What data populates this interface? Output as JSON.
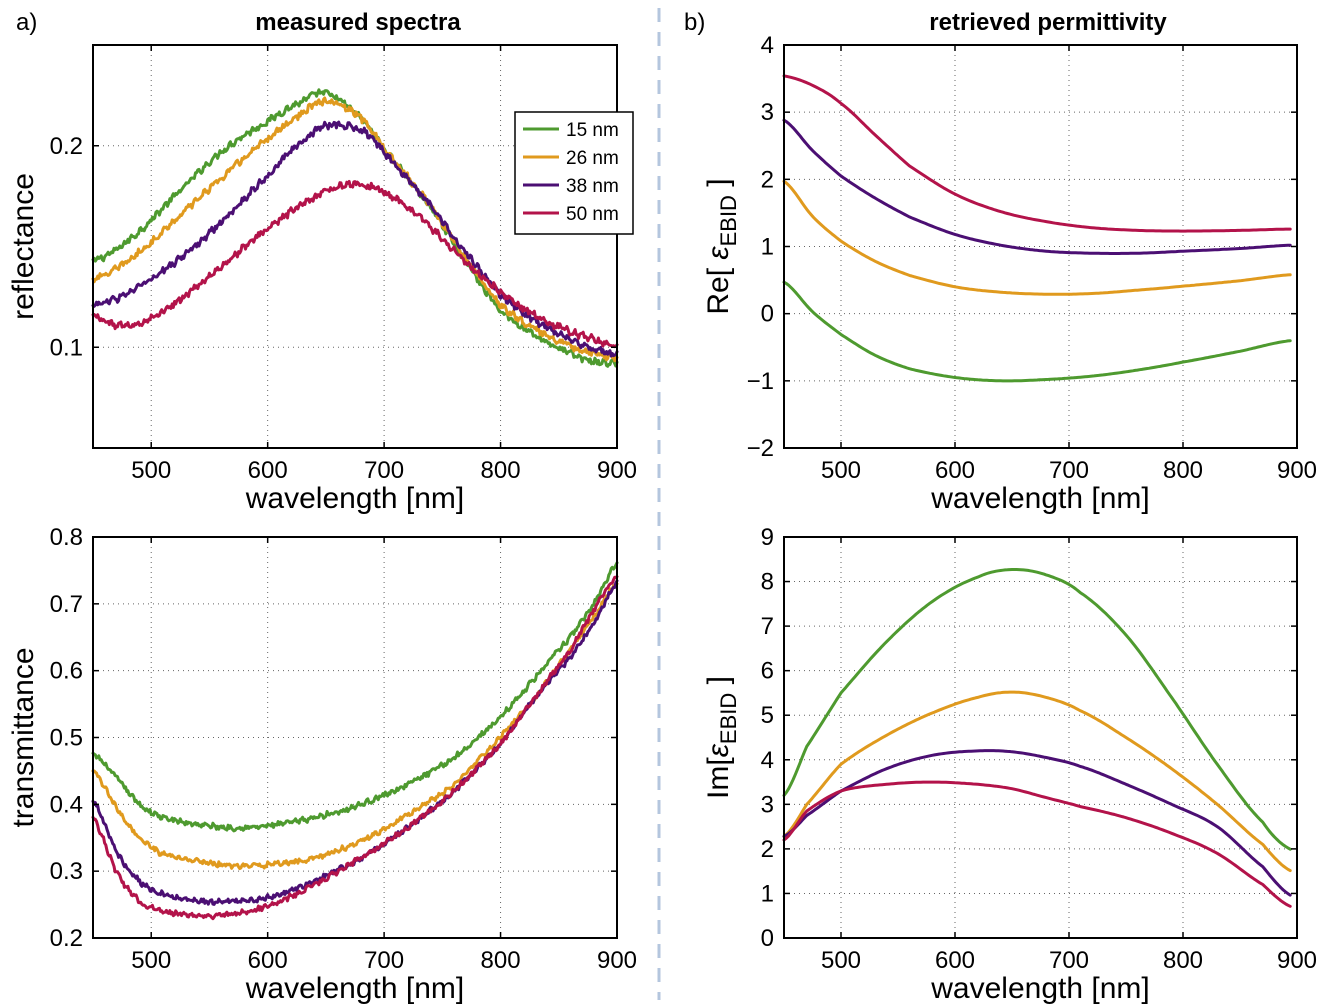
{
  "panel_labels": {
    "a": "a)",
    "b": "b)"
  },
  "titles": {
    "left": "measured spectra",
    "right": "retrieved permittivity"
  },
  "colors": {
    "15 nm": "#4e9a2f",
    "26 nm": "#e09a1e",
    "38 nm": "#4b0f73",
    "50 nm": "#b3134a",
    "divider": "#b4c6de"
  },
  "legend": {
    "placement": "top-right",
    "entries": [
      "15 nm",
      "26 nm",
      "38 nm",
      "50 nm"
    ]
  },
  "chart_data": [
    {
      "id": "reflectance",
      "type": "line",
      "title": "measured spectra",
      "xlabel": "wavelength [nm]",
      "ylabel": "reflectance",
      "xlim": [
        450,
        900
      ],
      "ylim": [
        0.05,
        0.25
      ],
      "xticks": [
        500,
        600,
        700,
        800,
        900
      ],
      "yticks": [
        0.1,
        0.2
      ],
      "ytick_labels": [
        "0.1",
        "0.2"
      ],
      "grid": true,
      "noisy": true,
      "series": [
        {
          "name": "15 nm",
          "x": [
            450,
            480,
            520,
            560,
            600,
            630,
            650,
            680,
            700,
            740,
            760,
            780,
            800,
            830,
            860,
            880,
            900
          ],
          "y": [
            0.143,
            0.153,
            0.175,
            0.197,
            0.212,
            0.222,
            0.226,
            0.214,
            0.198,
            0.17,
            0.152,
            0.134,
            0.118,
            0.106,
            0.097,
            0.093,
            0.092
          ]
        },
        {
          "name": "26 nm",
          "x": [
            450,
            480,
            520,
            560,
            600,
            630,
            650,
            680,
            700,
            740,
            760,
            780,
            800,
            830,
            860,
            880,
            900
          ],
          "y": [
            0.134,
            0.143,
            0.163,
            0.184,
            0.203,
            0.216,
            0.222,
            0.214,
            0.198,
            0.171,
            0.153,
            0.136,
            0.121,
            0.109,
            0.101,
            0.097,
            0.095
          ]
        },
        {
          "name": "38 nm",
          "x": [
            450,
            480,
            520,
            560,
            600,
            630,
            650,
            680,
            700,
            740,
            760,
            780,
            800,
            830,
            860,
            880,
            900
          ],
          "y": [
            0.121,
            0.127,
            0.142,
            0.162,
            0.185,
            0.202,
            0.21,
            0.208,
            0.196,
            0.171,
            0.155,
            0.14,
            0.126,
            0.113,
            0.104,
            0.099,
            0.096
          ]
        },
        {
          "name": "50 nm",
          "x": [
            450,
            470,
            490,
            520,
            560,
            600,
            640,
            670,
            700,
            730,
            760,
            790,
            820,
            850,
            880,
            900
          ],
          "y": [
            0.116,
            0.111,
            0.112,
            0.122,
            0.14,
            0.159,
            0.174,
            0.181,
            0.177,
            0.165,
            0.148,
            0.132,
            0.119,
            0.11,
            0.104,
            0.101
          ]
        }
      ]
    },
    {
      "id": "transmittance",
      "type": "line",
      "title": "",
      "xlabel": "wavelength [nm]",
      "ylabel": "transmittance",
      "xlim": [
        450,
        900
      ],
      "ylim": [
        0.2,
        0.8
      ],
      "xticks": [
        500,
        600,
        700,
        800,
        900
      ],
      "yticks": [
        0.2,
        0.3,
        0.4,
        0.5,
        0.6,
        0.7,
        0.8
      ],
      "ytick_labels": [
        "0.2",
        "0.3",
        "0.4",
        "0.5",
        "0.6",
        "0.7",
        "0.8"
      ],
      "grid": true,
      "noisy": true,
      "series": [
        {
          "name": "15 nm",
          "x": [
            450,
            470,
            490,
            510,
            540,
            570,
            600,
            640,
            680,
            720,
            760,
            800,
            830,
            860,
            880,
            900
          ],
          "y": [
            0.475,
            0.44,
            0.4,
            0.38,
            0.37,
            0.365,
            0.368,
            0.38,
            0.4,
            0.43,
            0.47,
            0.53,
            0.59,
            0.65,
            0.7,
            0.76
          ]
        },
        {
          "name": "26 nm",
          "x": [
            450,
            470,
            490,
            510,
            540,
            570,
            600,
            640,
            680,
            720,
            760,
            800,
            830,
            860,
            880,
            900
          ],
          "y": [
            0.45,
            0.395,
            0.35,
            0.325,
            0.315,
            0.308,
            0.31,
            0.32,
            0.345,
            0.385,
            0.43,
            0.5,
            0.56,
            0.63,
            0.68,
            0.73
          ]
        },
        {
          "name": "38 nm",
          "x": [
            450,
            470,
            490,
            510,
            540,
            570,
            600,
            640,
            680,
            720,
            760,
            800,
            830,
            860,
            880,
            900
          ],
          "y": [
            0.405,
            0.33,
            0.285,
            0.265,
            0.255,
            0.255,
            0.26,
            0.285,
            0.32,
            0.365,
            0.42,
            0.49,
            0.56,
            0.62,
            0.67,
            0.73
          ]
        },
        {
          "name": "50 nm",
          "x": [
            450,
            470,
            490,
            510,
            540,
            570,
            600,
            640,
            680,
            720,
            760,
            800,
            830,
            860,
            880,
            900
          ],
          "y": [
            0.38,
            0.3,
            0.255,
            0.24,
            0.233,
            0.236,
            0.248,
            0.28,
            0.32,
            0.365,
            0.42,
            0.49,
            0.56,
            0.63,
            0.69,
            0.74
          ]
        }
      ]
    },
    {
      "id": "re-permittivity",
      "type": "line",
      "title": "retrieved permittivity",
      "xlabel": "wavelength [nm]",
      "ylabel": "Re[ εEBID ]",
      "ylabel_parts": {
        "prefix": "Re[ ",
        "symbol": "ε",
        "subscript": "EBID",
        "suffix": " ]"
      },
      "xlim": [
        450,
        900
      ],
      "ylim": [
        -2,
        4
      ],
      "xticks": [
        500,
        600,
        700,
        800,
        900
      ],
      "yticks": [
        -2,
        -1,
        0,
        1,
        2,
        3,
        4
      ],
      "ytick_labels": [
        "−2",
        "−1",
        "0",
        "1",
        "2",
        "3",
        "4"
      ],
      "grid": true,
      "noisy": false,
      "series": [
        {
          "name": "15 nm",
          "x": [
            450,
            475,
            500,
            530,
            560,
            600,
            640,
            680,
            720,
            760,
            800,
            850,
            895
          ],
          "y": [
            0.47,
            0.03,
            -0.31,
            -0.62,
            -0.82,
            -0.95,
            -1.0,
            -0.98,
            -0.93,
            -0.84,
            -0.72,
            -0.56,
            -0.4
          ]
        },
        {
          "name": "26 nm",
          "x": [
            450,
            475,
            500,
            530,
            560,
            600,
            640,
            680,
            720,
            760,
            800,
            850,
            895
          ],
          "y": [
            1.97,
            1.45,
            1.08,
            0.78,
            0.57,
            0.4,
            0.32,
            0.29,
            0.3,
            0.35,
            0.41,
            0.49,
            0.58
          ]
        },
        {
          "name": "38 nm",
          "x": [
            450,
            475,
            500,
            530,
            560,
            600,
            640,
            680,
            720,
            760,
            800,
            850,
            895
          ],
          "y": [
            2.88,
            2.43,
            2.05,
            1.72,
            1.44,
            1.18,
            1.02,
            0.93,
            0.9,
            0.9,
            0.93,
            0.97,
            1.02
          ]
        },
        {
          "name": "50 nm",
          "x": [
            450,
            475,
            500,
            530,
            560,
            600,
            640,
            680,
            720,
            760,
            800,
            850,
            895
          ],
          "y": [
            3.54,
            3.4,
            3.13,
            2.66,
            2.2,
            1.78,
            1.52,
            1.37,
            1.28,
            1.24,
            1.23,
            1.24,
            1.26
          ]
        }
      ]
    },
    {
      "id": "im-permittivity",
      "type": "line",
      "title": "",
      "xlabel": "wavelength [nm]",
      "ylabel": "Im[εEBID ]",
      "ylabel_parts": {
        "prefix": "Im[",
        "symbol": "ε",
        "subscript": "EBID",
        "suffix": " ]"
      },
      "xlim": [
        450,
        900
      ],
      "ylim": [
        0,
        9
      ],
      "xticks": [
        500,
        600,
        700,
        800,
        900
      ],
      "yticks": [
        0,
        1,
        2,
        3,
        4,
        5,
        6,
        7,
        8,
        9
      ],
      "ytick_labels": [
        "0",
        "1",
        "2",
        "3",
        "4",
        "5",
        "6",
        "7",
        "8",
        "9"
      ],
      "grid": true,
      "noisy": false,
      "series": [
        {
          "name": "15 nm",
          "x": [
            450,
            470,
            500,
            540,
            580,
            620,
            650,
            680,
            710,
            750,
            790,
            830,
            870,
            895
          ],
          "y": [
            3.2,
            4.3,
            5.5,
            6.65,
            7.55,
            8.1,
            8.27,
            8.15,
            7.75,
            6.8,
            5.4,
            3.9,
            2.6,
            1.98
          ]
        },
        {
          "name": "26 nm",
          "x": [
            450,
            470,
            500,
            540,
            580,
            620,
            650,
            680,
            710,
            750,
            790,
            830,
            870,
            895
          ],
          "y": [
            2.28,
            3.0,
            3.9,
            4.55,
            5.05,
            5.4,
            5.52,
            5.4,
            5.1,
            4.5,
            3.8,
            3.0,
            2.1,
            1.5
          ]
        },
        {
          "name": "38 nm",
          "x": [
            450,
            470,
            500,
            540,
            580,
            620,
            650,
            680,
            710,
            750,
            790,
            830,
            870,
            895
          ],
          "y": [
            2.28,
            2.75,
            3.3,
            3.8,
            4.1,
            4.2,
            4.18,
            4.05,
            3.85,
            3.45,
            3.0,
            2.5,
            1.6,
            0.95
          ]
        },
        {
          "name": "50 nm",
          "x": [
            450,
            470,
            500,
            540,
            580,
            620,
            650,
            680,
            710,
            750,
            790,
            830,
            870,
            895
          ],
          "y": [
            2.2,
            2.85,
            3.3,
            3.45,
            3.5,
            3.45,
            3.35,
            3.15,
            2.95,
            2.7,
            2.35,
            1.9,
            1.2,
            0.7
          ]
        }
      ]
    }
  ]
}
